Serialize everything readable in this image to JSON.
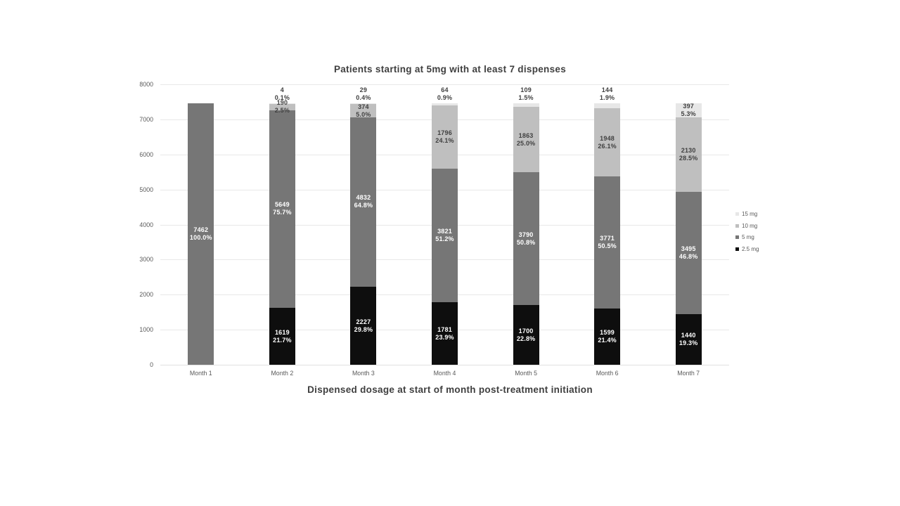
{
  "chart_title": "Patients starting at 5mg with at least 7 dispenses",
  "axis_title": "Dispensed dosage at start of month post-treatment initiation",
  "colors": {
    "dose_2_5mg": "#0e0e0e",
    "dose_5mg": "#767676",
    "dose_10mg": "#bfbfbf",
    "dose_15mg": "#e7e7e7",
    "label_on_dark": "#ffffff",
    "label_on_light": "#404040",
    "axis_text": "#595959",
    "gridline": "#e8e8e8"
  },
  "chart_data": {
    "type": "bar",
    "stacked": true,
    "title": "Patients starting at 5mg with at least 7 dispenses",
    "xlabel": "Dispensed dosage at start of month post-treatment initiation",
    "ylabel": "",
    "categories": [
      "Month 1",
      "Month 2",
      "Month 3",
      "Month 4",
      "Month 5",
      "Month 6",
      "Month 7"
    ],
    "series": [
      {
        "name": "2.5 mg",
        "color": "#0e0e0e",
        "label_color": "#ffffff",
        "values": [
          0,
          1619,
          2227,
          1781,
          1700,
          1599,
          1440
        ],
        "pcts": [
          "",
          "21.7%",
          "29.8%",
          "23.9%",
          "22.8%",
          "21.4%",
          "19.3%"
        ]
      },
      {
        "name": "5 mg",
        "color": "#767676",
        "label_color": "#ffffff",
        "values": [
          7462,
          5649,
          4832,
          3821,
          3790,
          3771,
          3495
        ],
        "pcts": [
          "100.0%",
          "75.7%",
          "64.8%",
          "51.2%",
          "50.8%",
          "50.5%",
          "46.8%"
        ]
      },
      {
        "name": "10 mg",
        "color": "#bfbfbf",
        "label_color": "#404040",
        "values": [
          0,
          190,
          374,
          1796,
          1863,
          1948,
          2130
        ],
        "pcts": [
          "",
          "2.5%",
          "5.0%",
          "24.1%",
          "25.0%",
          "26.1%",
          "28.5%"
        ]
      },
      {
        "name": "15 mg",
        "color": "#e7e7e7",
        "label_color": "#404040",
        "values": [
          0,
          4,
          29,
          64,
          109,
          144,
          397
        ],
        "pcts": [
          "",
          "0.1%",
          "0.4%",
          "0.9%",
          "1.5%",
          "1.9%",
          "5.3%"
        ]
      }
    ],
    "legend": [
      "15 mg",
      "10 mg",
      "5 mg",
      "2.5 mg"
    ],
    "legend_position": "right",
    "grid": "horizontal",
    "ylim": [
      0,
      8000
    ],
    "y_ticks": [
      0,
      1000,
      2000,
      3000,
      4000,
      5000,
      6000,
      7000,
      8000
    ]
  }
}
